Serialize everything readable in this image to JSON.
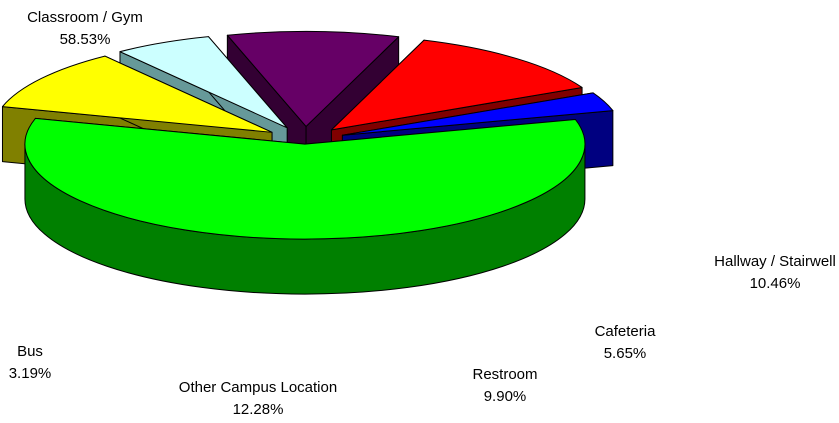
{
  "chart_data": {
    "type": "pie",
    "categories": [
      "Classroom / Gym",
      "Hallway / Stairwell",
      "Cafeteria",
      "Restroom",
      "Other Campus Location",
      "Bus"
    ],
    "values": [
      58.53,
      10.46,
      5.65,
      9.9,
      12.28,
      3.19
    ],
    "value_labels": [
      "58.53%",
      "10.46%",
      "5.65%",
      "9.90%",
      "12.28%",
      "3.19%"
    ],
    "colors": [
      "#00ff00",
      "#ffff00",
      "#ccffff",
      "#660066",
      "#ff0000",
      "#0000ff"
    ],
    "side_colors": [
      "#008000",
      "#808000",
      "#669999",
      "#330033",
      "#800000",
      "#000080"
    ]
  }
}
